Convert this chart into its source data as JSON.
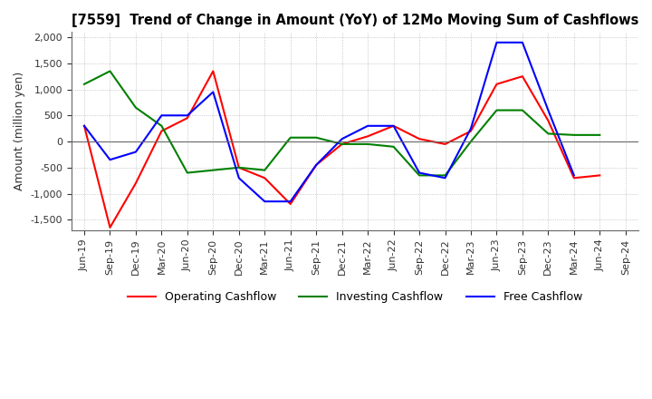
{
  "title": "[7559]  Trend of Change in Amount (YoY) of 12Mo Moving Sum of Cashflows",
  "ylabel": "Amount (million yen)",
  "ylim": [
    -1700,
    2100
  ],
  "yticks": [
    -1500,
    -1000,
    -500,
    0,
    500,
    1000,
    1500,
    2000
  ],
  "x_labels": [
    "Jun-19",
    "Sep-19",
    "Dec-19",
    "Mar-20",
    "Jun-20",
    "Sep-20",
    "Dec-20",
    "Mar-21",
    "Jun-21",
    "Sep-21",
    "Dec-21",
    "Mar-22",
    "Jun-22",
    "Sep-22",
    "Dec-22",
    "Mar-23",
    "Jun-23",
    "Sep-23",
    "Dec-23",
    "Mar-24",
    "Jun-24",
    "Sep-24"
  ],
  "operating": [
    300,
    -1650,
    -800,
    200,
    450,
    1350,
    -500,
    -700,
    -1200,
    -450,
    -50,
    100,
    300,
    50,
    -50,
    200,
    1100,
    1250,
    400,
    -700,
    -650,
    null
  ],
  "investing": [
    1100,
    1350,
    650,
    300,
    -600,
    -550,
    -500,
    -550,
    75,
    75,
    -50,
    -50,
    -100,
    -650,
    -650,
    0,
    600,
    600,
    150,
    125,
    125,
    null
  ],
  "free": [
    300,
    -350,
    -200,
    500,
    500,
    950,
    -700,
    -1150,
    -1150,
    -450,
    50,
    300,
    300,
    -600,
    -700,
    250,
    1900,
    1900,
    600,
    -650,
    null,
    null
  ],
  "operating_color": "#ff0000",
  "investing_color": "#008000",
  "free_color": "#0000ff",
  "bg_color": "#ffffff",
  "grid_color": "#aaaaaa"
}
